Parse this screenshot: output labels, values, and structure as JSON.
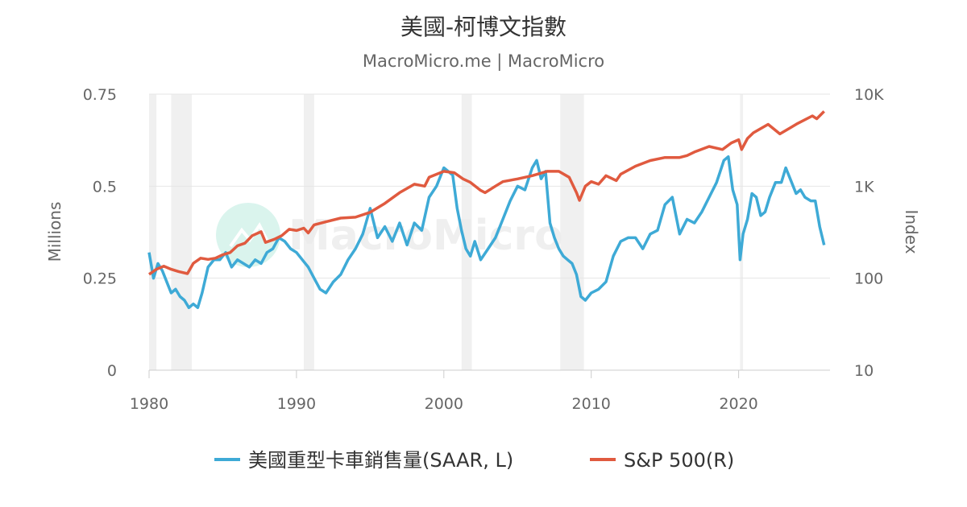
{
  "chart_data": {
    "type": "line",
    "title": "美國-柯博文指數",
    "subtitle": "MacroMicro.me | MacroMicro",
    "watermark": "MacroMicro",
    "xlim": [
      1980,
      2026.2
    ],
    "x_ticks": [
      1980,
      1990,
      2000,
      2010,
      2020
    ],
    "y_left": {
      "label": "Millions",
      "lim": [
        0,
        0.75
      ],
      "ticks": [
        0,
        0.25,
        0.5,
        0.75
      ],
      "tick_labels": [
        "0",
        "0.25",
        "0.5",
        "0.75"
      ]
    },
    "y_right": {
      "label": "Index",
      "scale": "log",
      "lim": [
        10,
        10000
      ],
      "ticks": [
        10,
        100,
        1000,
        10000
      ],
      "tick_labels": [
        "10",
        "100",
        "1K",
        "10K"
      ]
    },
    "recessions": [
      [
        1980.0,
        1980.5
      ],
      [
        1981.5,
        1982.9
      ],
      [
        1990.5,
        1991.2
      ],
      [
        2001.2,
        2001.9
      ],
      [
        2007.9,
        2009.5
      ],
      [
        2020.1,
        2020.3
      ]
    ],
    "series": [
      {
        "name": "美國重型卡車銷售量(SAAR, L)",
        "axis": "left",
        "color": "#3eaad6",
        "x": [
          1980.0,
          1980.3,
          1980.6,
          1980.9,
          1981.2,
          1981.5,
          1981.8,
          1982.1,
          1982.4,
          1982.7,
          1983.0,
          1983.3,
          1983.6,
          1984.0,
          1984.4,
          1984.8,
          1985.2,
          1985.6,
          1986.0,
          1986.4,
          1986.8,
          1987.2,
          1987.6,
          1988.0,
          1988.4,
          1988.8,
          1989.2,
          1989.6,
          1990.0,
          1990.4,
          1990.8,
          1991.2,
          1991.6,
          1992.0,
          1992.5,
          1993.0,
          1993.5,
          1994.0,
          1994.5,
          1995.0,
          1995.5,
          1996.0,
          1996.5,
          1997.0,
          1997.5,
          1998.0,
          1998.5,
          1999.0,
          1999.5,
          2000.0,
          2000.3,
          2000.6,
          2000.9,
          2001.2,
          2001.5,
          2001.8,
          2002.1,
          2002.5,
          2003.0,
          2003.5,
          2004.0,
          2004.5,
          2005.0,
          2005.5,
          2006.0,
          2006.3,
          2006.6,
          2006.9,
          2007.2,
          2007.5,
          2007.8,
          2008.1,
          2008.4,
          2008.7,
          2009.0,
          2009.3,
          2009.6,
          2010.0,
          2010.5,
          2011.0,
          2011.5,
          2012.0,
          2012.5,
          2013.0,
          2013.5,
          2014.0,
          2014.5,
          2015.0,
          2015.5,
          2016.0,
          2016.5,
          2017.0,
          2017.5,
          2018.0,
          2018.5,
          2019.0,
          2019.3,
          2019.6,
          2019.9,
          2020.1,
          2020.3,
          2020.6,
          2020.9,
          2021.2,
          2021.5,
          2021.8,
          2022.1,
          2022.5,
          2022.9,
          2023.2,
          2023.5,
          2023.9,
          2024.2,
          2024.5,
          2024.9,
          2025.2,
          2025.5,
          2025.8
        ],
        "values": [
          0.32,
          0.25,
          0.29,
          0.27,
          0.24,
          0.21,
          0.22,
          0.2,
          0.19,
          0.17,
          0.18,
          0.17,
          0.21,
          0.28,
          0.3,
          0.3,
          0.32,
          0.28,
          0.3,
          0.29,
          0.28,
          0.3,
          0.29,
          0.32,
          0.33,
          0.36,
          0.35,
          0.33,
          0.32,
          0.3,
          0.28,
          0.25,
          0.22,
          0.21,
          0.24,
          0.26,
          0.3,
          0.33,
          0.37,
          0.44,
          0.36,
          0.39,
          0.35,
          0.4,
          0.34,
          0.4,
          0.38,
          0.47,
          0.5,
          0.55,
          0.54,
          0.53,
          0.44,
          0.38,
          0.33,
          0.31,
          0.35,
          0.3,
          0.33,
          0.36,
          0.41,
          0.46,
          0.5,
          0.49,
          0.55,
          0.57,
          0.52,
          0.54,
          0.4,
          0.36,
          0.33,
          0.31,
          0.3,
          0.29,
          0.26,
          0.2,
          0.19,
          0.21,
          0.22,
          0.24,
          0.31,
          0.35,
          0.36,
          0.36,
          0.33,
          0.37,
          0.38,
          0.45,
          0.47,
          0.37,
          0.41,
          0.4,
          0.43,
          0.47,
          0.51,
          0.57,
          0.58,
          0.49,
          0.45,
          0.3,
          0.37,
          0.41,
          0.48,
          0.47,
          0.42,
          0.43,
          0.47,
          0.51,
          0.51,
          0.55,
          0.52,
          0.48,
          0.49,
          0.47,
          0.46,
          0.46,
          0.39,
          0.34
        ]
      },
      {
        "name": "S&P 500(R)",
        "axis": "right",
        "color": "#e05a3f",
        "x": [
          1980.0,
          1980.5,
          1981.0,
          1981.5,
          1982.0,
          1982.6,
          1983.0,
          1983.5,
          1984.0,
          1984.5,
          1985.0,
          1985.5,
          1986.0,
          1986.5,
          1987.0,
          1987.6,
          1987.9,
          1988.5,
          1989.0,
          1989.5,
          1990.0,
          1990.5,
          1990.8,
          1991.2,
          1992.0,
          1993.0,
          1994.0,
          1995.0,
          1996.0,
          1997.0,
          1998.0,
          1998.7,
          1999.0,
          2000.0,
          2000.7,
          2001.3,
          2001.8,
          2002.5,
          2002.8,
          2003.5,
          2004.0,
          2005.0,
          2006.0,
          2007.0,
          2007.8,
          2008.5,
          2009.0,
          2009.2,
          2009.6,
          2010.0,
          2010.5,
          2011.0,
          2011.7,
          2012.0,
          2013.0,
          2014.0,
          2015.0,
          2016.0,
          2016.5,
          2017.0,
          2018.0,
          2018.9,
          2019.5,
          2020.0,
          2020.2,
          2020.6,
          2021.0,
          2022.0,
          2022.8,
          2023.5,
          2024.0,
          2025.0,
          2025.3,
          2025.8
        ],
        "values": [
          110,
          125,
          135,
          125,
          118,
          112,
          145,
          165,
          160,
          165,
          180,
          190,
          225,
          240,
          290,
          320,
          245,
          265,
          290,
          340,
          330,
          350,
          310,
          380,
          410,
          450,
          460,
          520,
          650,
          850,
          1050,
          1000,
          1250,
          1450,
          1400,
          1200,
          1100,
          900,
          850,
          1000,
          1120,
          1200,
          1300,
          1450,
          1450,
          1250,
          850,
          700,
          1000,
          1120,
          1050,
          1300,
          1150,
          1350,
          1650,
          1900,
          2050,
          2050,
          2150,
          2350,
          2700,
          2500,
          2950,
          3200,
          2500,
          3300,
          3800,
          4700,
          3700,
          4300,
          4800,
          5800,
          5400,
          6500
        ]
      }
    ]
  },
  "legend": {
    "items": [
      {
        "label": "美國重型卡車銷售量(SAAR, L)",
        "color": "#3eaad6"
      },
      {
        "label": "S&P 500(R)",
        "color": "#e05a3f"
      }
    ]
  }
}
